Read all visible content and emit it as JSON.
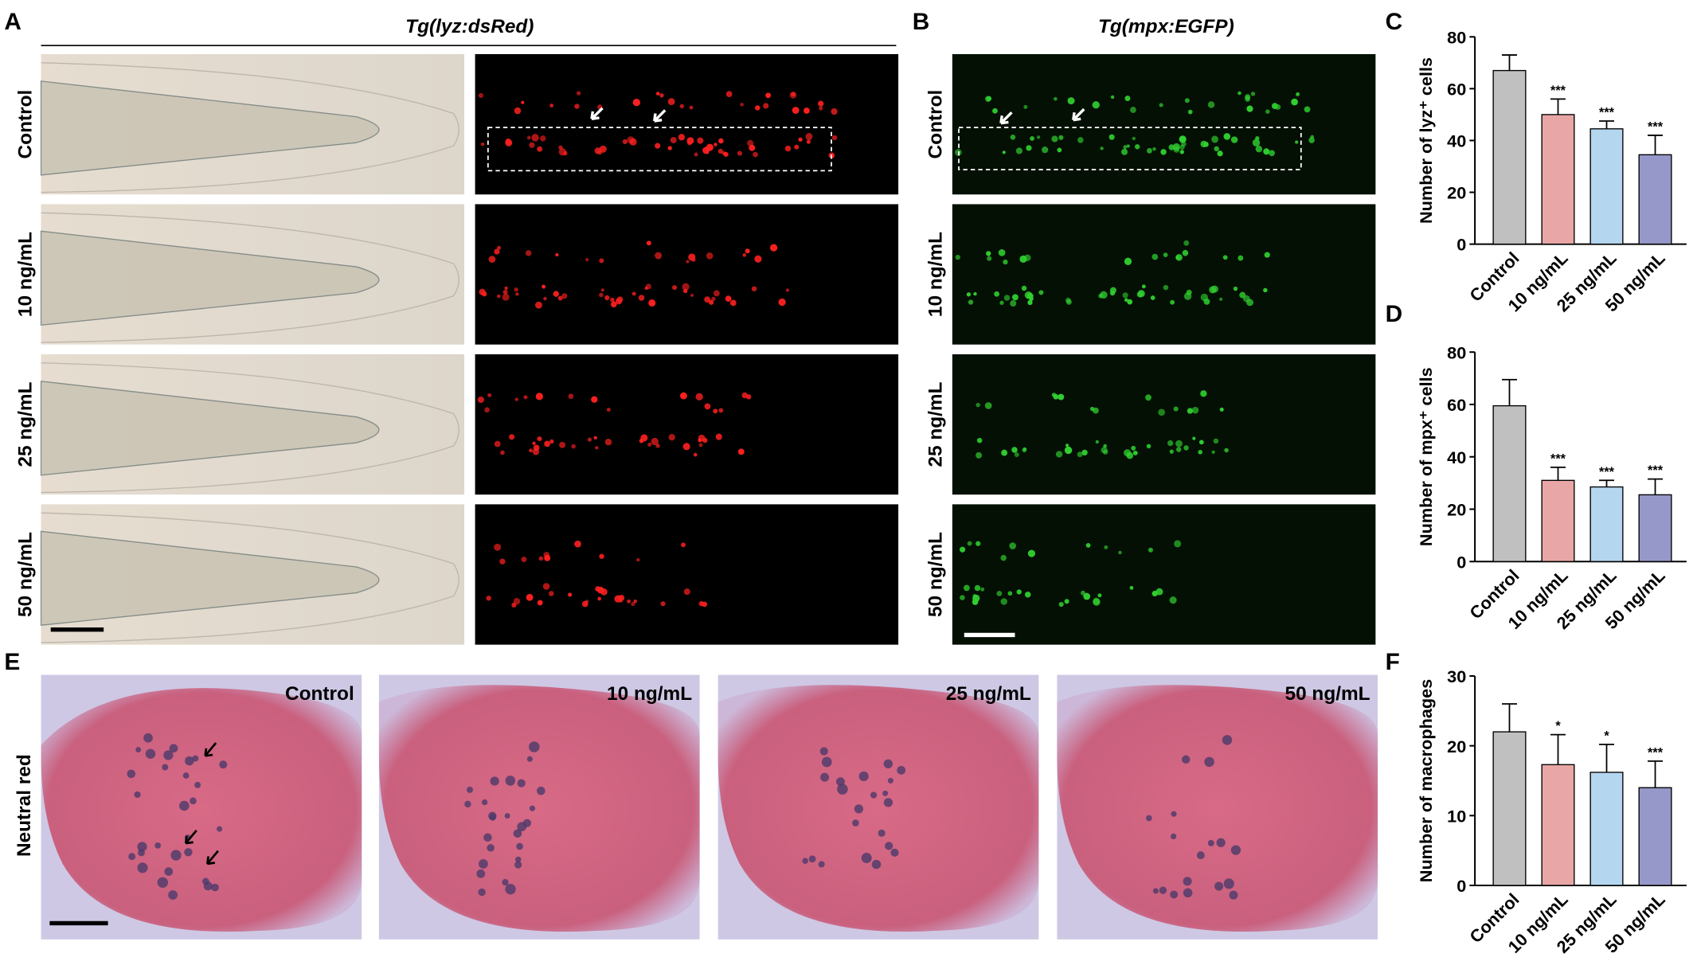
{
  "panels": {
    "a": {
      "letter": "A",
      "title": "Tg(lyz:dsRed)",
      "rows": [
        "Control",
        "10 ng/mL",
        "25 ng/mL",
        "50 ng/mL"
      ]
    },
    "b": {
      "letter": "B",
      "title": "Tg(mpx:EGFP)",
      "rows": [
        "Control",
        "10 ng/mL",
        "25 ng/mL",
        "50 ng/mL"
      ]
    },
    "e": {
      "letter": "E",
      "row_label": "Neutral red",
      "images": [
        "Control",
        "10 ng/mL",
        "25 ng/mL",
        "50 ng/mL"
      ]
    }
  },
  "chart_data": [
    {
      "type": "bar",
      "letter": "C",
      "y_label": "Number of lyz⁺ cells",
      "categories": [
        "Control",
        "10 ng/mL",
        "25 ng/mL",
        "50 ng/mL"
      ],
      "colors": [
        "#c0c0c0",
        "#e8a7a6",
        "#b5d6ef",
        "#9598c8"
      ],
      "values": [
        67,
        50,
        44.5,
        34.5
      ],
      "errors": [
        6,
        6,
        3,
        7.5
      ],
      "annotations": [
        null,
        "***",
        "***",
        "***"
      ],
      "ylim": [
        0,
        80
      ],
      "yticks": [
        0,
        20,
        40,
        60,
        80
      ]
    },
    {
      "type": "bar",
      "letter": "D",
      "y_label": "Number of mpx⁺ cells",
      "categories": [
        "Control",
        "10 ng/mL",
        "25 ng/mL",
        "50 ng/mL"
      ],
      "colors": [
        "#c0c0c0",
        "#e8a7a6",
        "#b5d6ef",
        "#9598c8"
      ],
      "values": [
        59.5,
        31,
        28.5,
        25.5
      ],
      "errors": [
        10,
        5,
        2.5,
        6
      ],
      "annotations": [
        null,
        "***",
        "***",
        "***"
      ],
      "ylim": [
        0,
        80
      ],
      "yticks": [
        0,
        20,
        40,
        60,
        80
      ]
    },
    {
      "type": "bar",
      "letter": "F",
      "y_label": "Number of macrophages",
      "categories": [
        "Control",
        "10 ng/mL",
        "25 ng/mL",
        "50 ng/mL"
      ],
      "colors": [
        "#c0c0c0",
        "#e8a7a6",
        "#b5d6ef",
        "#9598c8"
      ],
      "values": [
        22,
        17.3,
        16.2,
        14
      ],
      "errors": [
        4,
        4.3,
        4,
        3.8
      ],
      "annotations": [
        null,
        "*",
        "*",
        "***"
      ],
      "ylim": [
        0,
        30
      ],
      "yticks": [
        0,
        10,
        20,
        30
      ]
    }
  ]
}
